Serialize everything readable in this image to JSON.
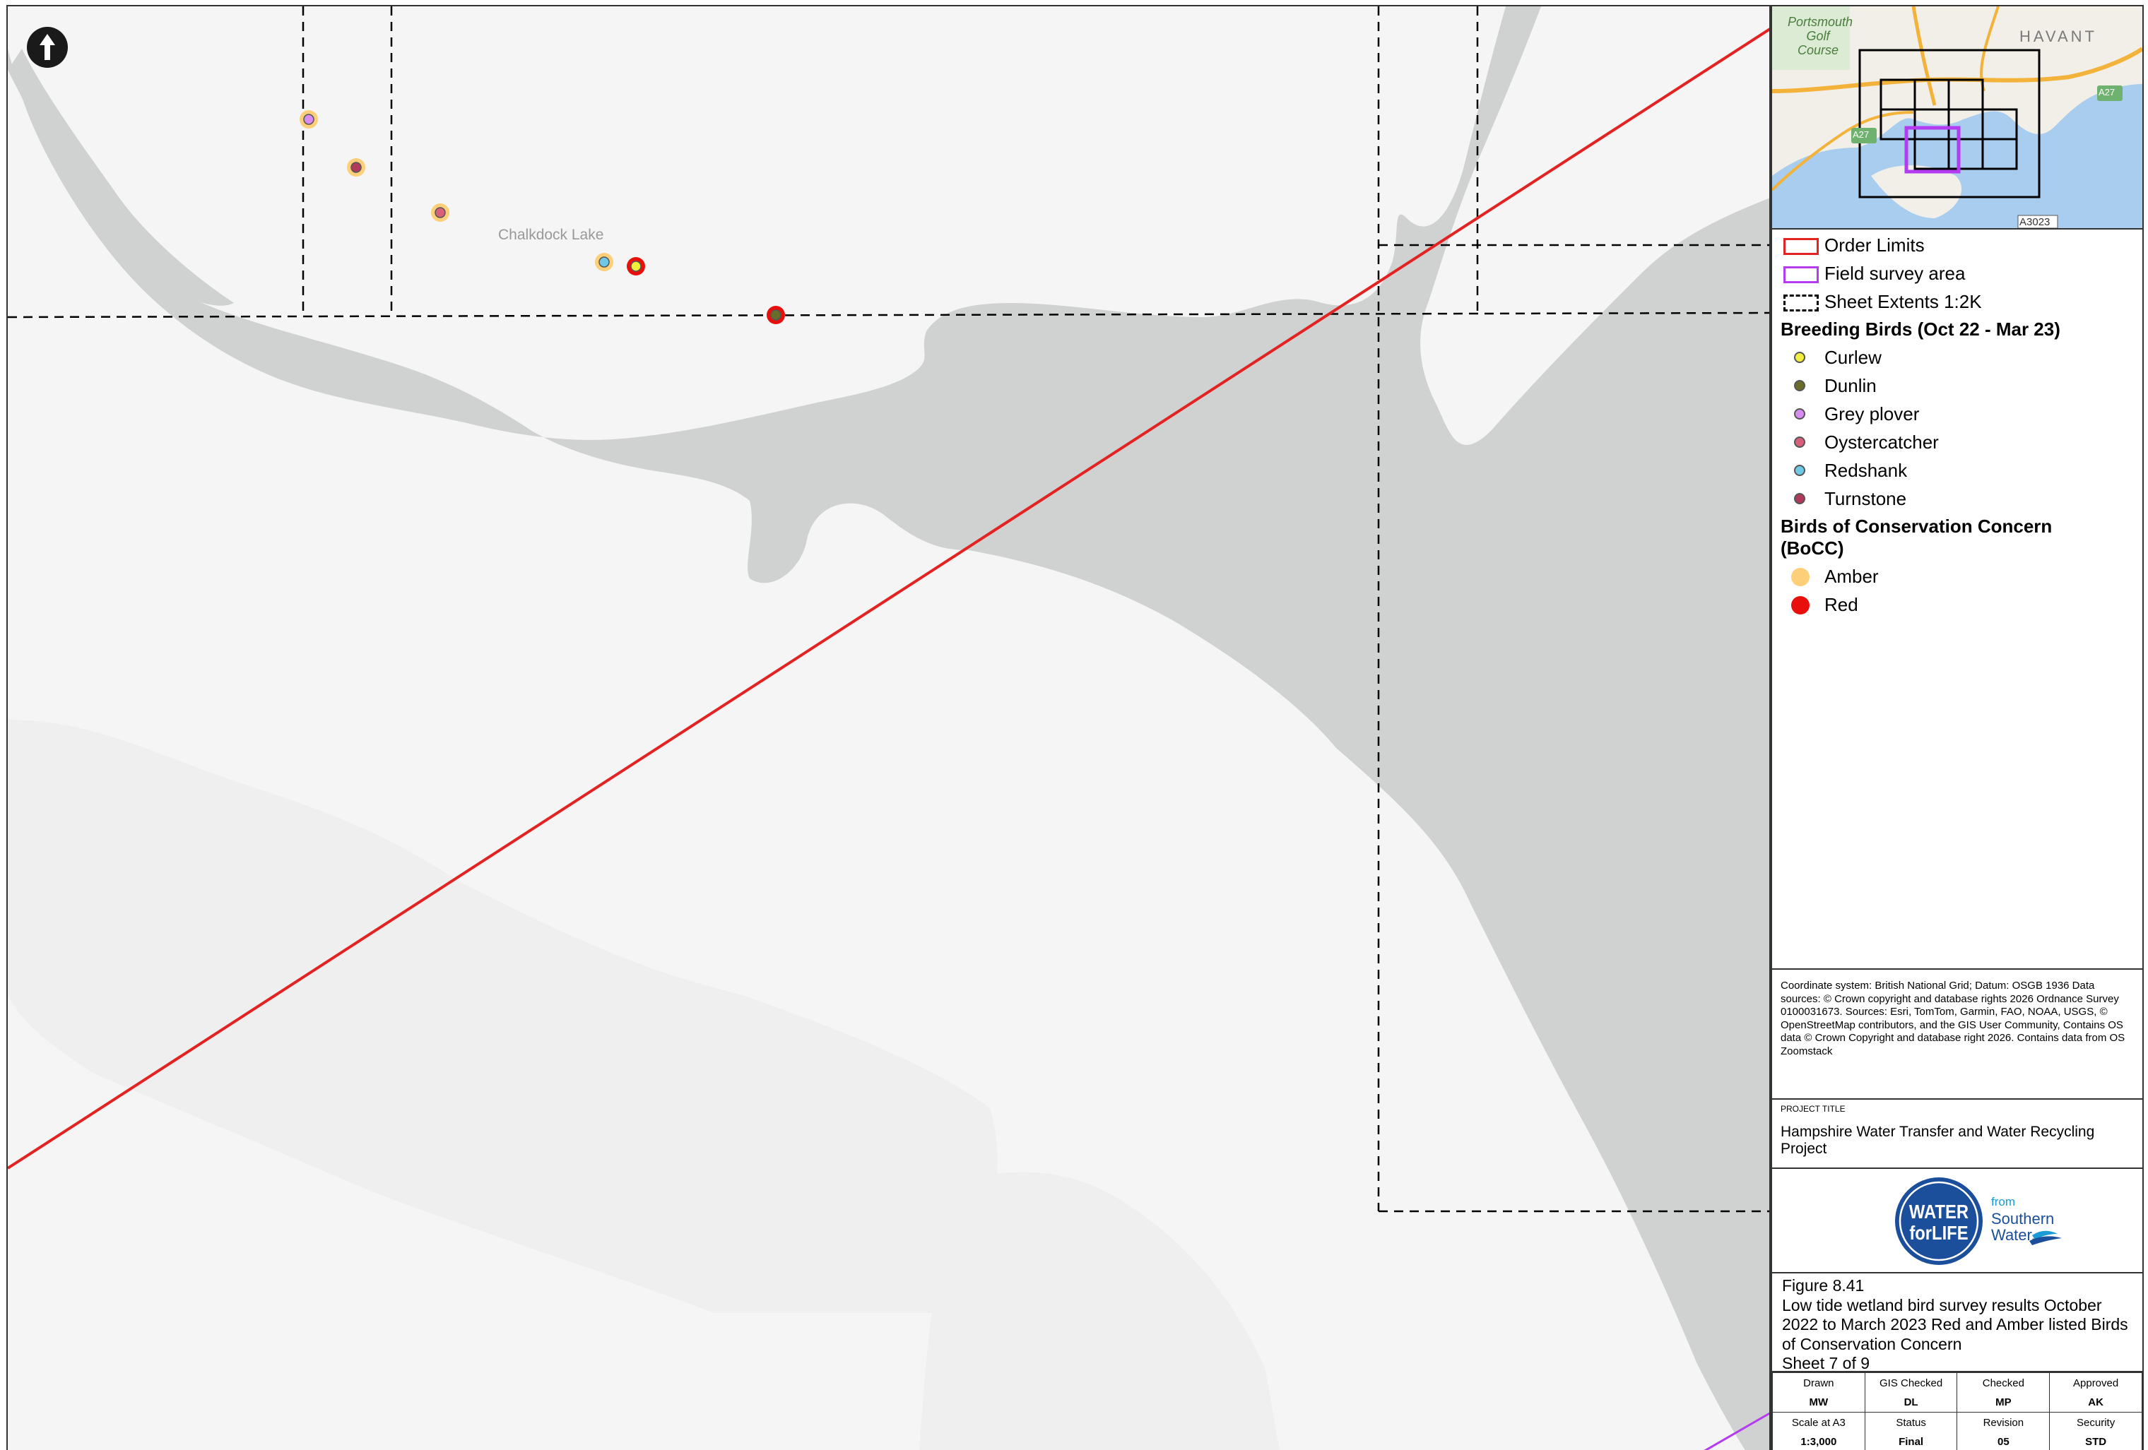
{
  "map": {
    "place_label": "Chalkdock Lake"
  },
  "overview": {
    "labels": {
      "golf": "Portsmouth\nGolf\nCourse",
      "golf_lines": [
        "Portsmouth",
        "Golf",
        "Course"
      ],
      "town": "HAVANT",
      "road_a27_east": "A27",
      "road_a27_west": "A27",
      "road_a3023": "A3023"
    }
  },
  "legend": {
    "items": [
      {
        "label": "Order Limits",
        "symbol": "rect",
        "color": "#e32222"
      },
      {
        "label": "Field survey area",
        "symbol": "rect",
        "color": "#b43cf0"
      },
      {
        "label": "Sheet Extents 1:2K",
        "symbol": "dashed-rect",
        "color": "#000000"
      }
    ],
    "breeding_heading": "Breeding Birds (Oct 22 - Mar 23)",
    "birds": [
      {
        "label": "Curlew",
        "color": "#f0f03c"
      },
      {
        "label": "Dunlin",
        "color": "#6b6b2a"
      },
      {
        "label": "Grey plover",
        "color": "#d98cf0"
      },
      {
        "label": "Oystercatcher",
        "color": "#d9607a"
      },
      {
        "label": "Redshank",
        "color": "#6ec8e6"
      },
      {
        "label": "Turnstone",
        "color": "#b03a5a"
      }
    ],
    "bocc_heading": "Birds of Conservation Concern (BoCC)",
    "bocc_heading_lines": [
      "Birds of Conservation Concern",
      "(BoCC)"
    ],
    "bocc": [
      {
        "label": "Amber",
        "color": "#fccf78"
      },
      {
        "label": "Red",
        "color": "#e8100c"
      }
    ]
  },
  "notes": {
    "text": "Coordinate system: British National Grid; Datum: OSGB 1936 Data sources: © Crown copyright and database rights 2026 Ordnance Survey 0100031673. Sources: Esri, TomTom, Garmin, FAO, NOAA, USGS, © OpenStreetMap contributors, and the GIS User Community, Contains OS data © Crown Copyright and database right 2026. Contains data from OS Zoomstack"
  },
  "project": {
    "label": "PROJECT TITLE",
    "title": "Hampshire Water Transfer and Water Recycling Project"
  },
  "logo": {
    "line1": "WATER",
    "line2": "forLIFE",
    "from": "from",
    "brand1": "Southern",
    "brand2": "Water."
  },
  "figure": {
    "number": "Figure 8.41",
    "title": "Low tide wetland bird survey results October 2022 to March 2023 Red and Amber listed Birds of Conservation Concern",
    "sheet": "Sheet 7 of 9"
  },
  "signoff": [
    [
      {
        "label": "Drawn",
        "value": "MW"
      },
      {
        "label": "GIS Checked",
        "value": "DL"
      },
      {
        "label": "Checked",
        "value": "MP"
      },
      {
        "label": "Approved",
        "value": "AK"
      }
    ],
    [
      {
        "label": "Scale at A3",
        "value": "1:3,000"
      },
      {
        "label": "Status",
        "value": "Final"
      },
      {
        "label": "Revision",
        "value": "05"
      },
      {
        "label": "Security",
        "value": "STD"
      }
    ]
  ],
  "colors": {
    "order_limits": "#e32222",
    "field_survey": "#b43cf0",
    "mudflat": "#d0d1d1",
    "land": "#f5f5f5",
    "water_overview": "#a9cdee"
  }
}
